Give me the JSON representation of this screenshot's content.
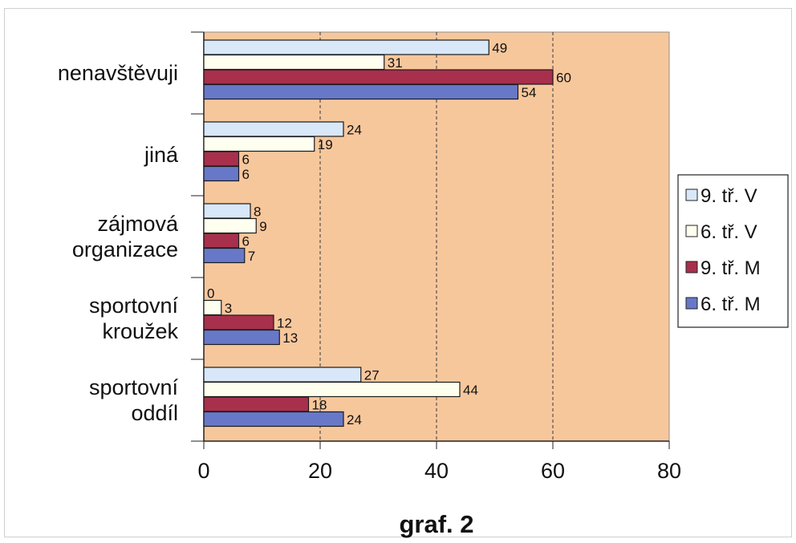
{
  "chart_data": {
    "type": "bar",
    "orientation": "horizontal",
    "title": "graf. 2",
    "categories": [
      [
        "nenavštěvuji"
      ],
      [
        "jiná"
      ],
      [
        "zájmová",
        "organizace"
      ],
      [
        "sportovní",
        "kroužek"
      ],
      [
        "sportovní",
        "oddíl"
      ]
    ],
    "series": [
      {
        "name": "9. tř. V",
        "color": "#d8e8f8",
        "values": [
          49,
          24,
          8,
          0,
          27
        ]
      },
      {
        "name": "6. tř. V",
        "color": "#fffff0",
        "values": [
          31,
          19,
          9,
          3,
          44
        ]
      },
      {
        "name": "9. tř. M",
        "color": "#a8304c",
        "values": [
          60,
          6,
          6,
          12,
          18
        ]
      },
      {
        "name": "6. tř. M",
        "color": "#6878c8",
        "values": [
          54,
          6,
          7,
          13,
          24
        ]
      }
    ],
    "xlim": [
      0,
      80
    ],
    "x_ticks": [
      "0",
      "20",
      "40",
      "60",
      "80"
    ],
    "grid": "vertical dashed",
    "plot_background": "#f7c79c",
    "legend_position": "right"
  }
}
